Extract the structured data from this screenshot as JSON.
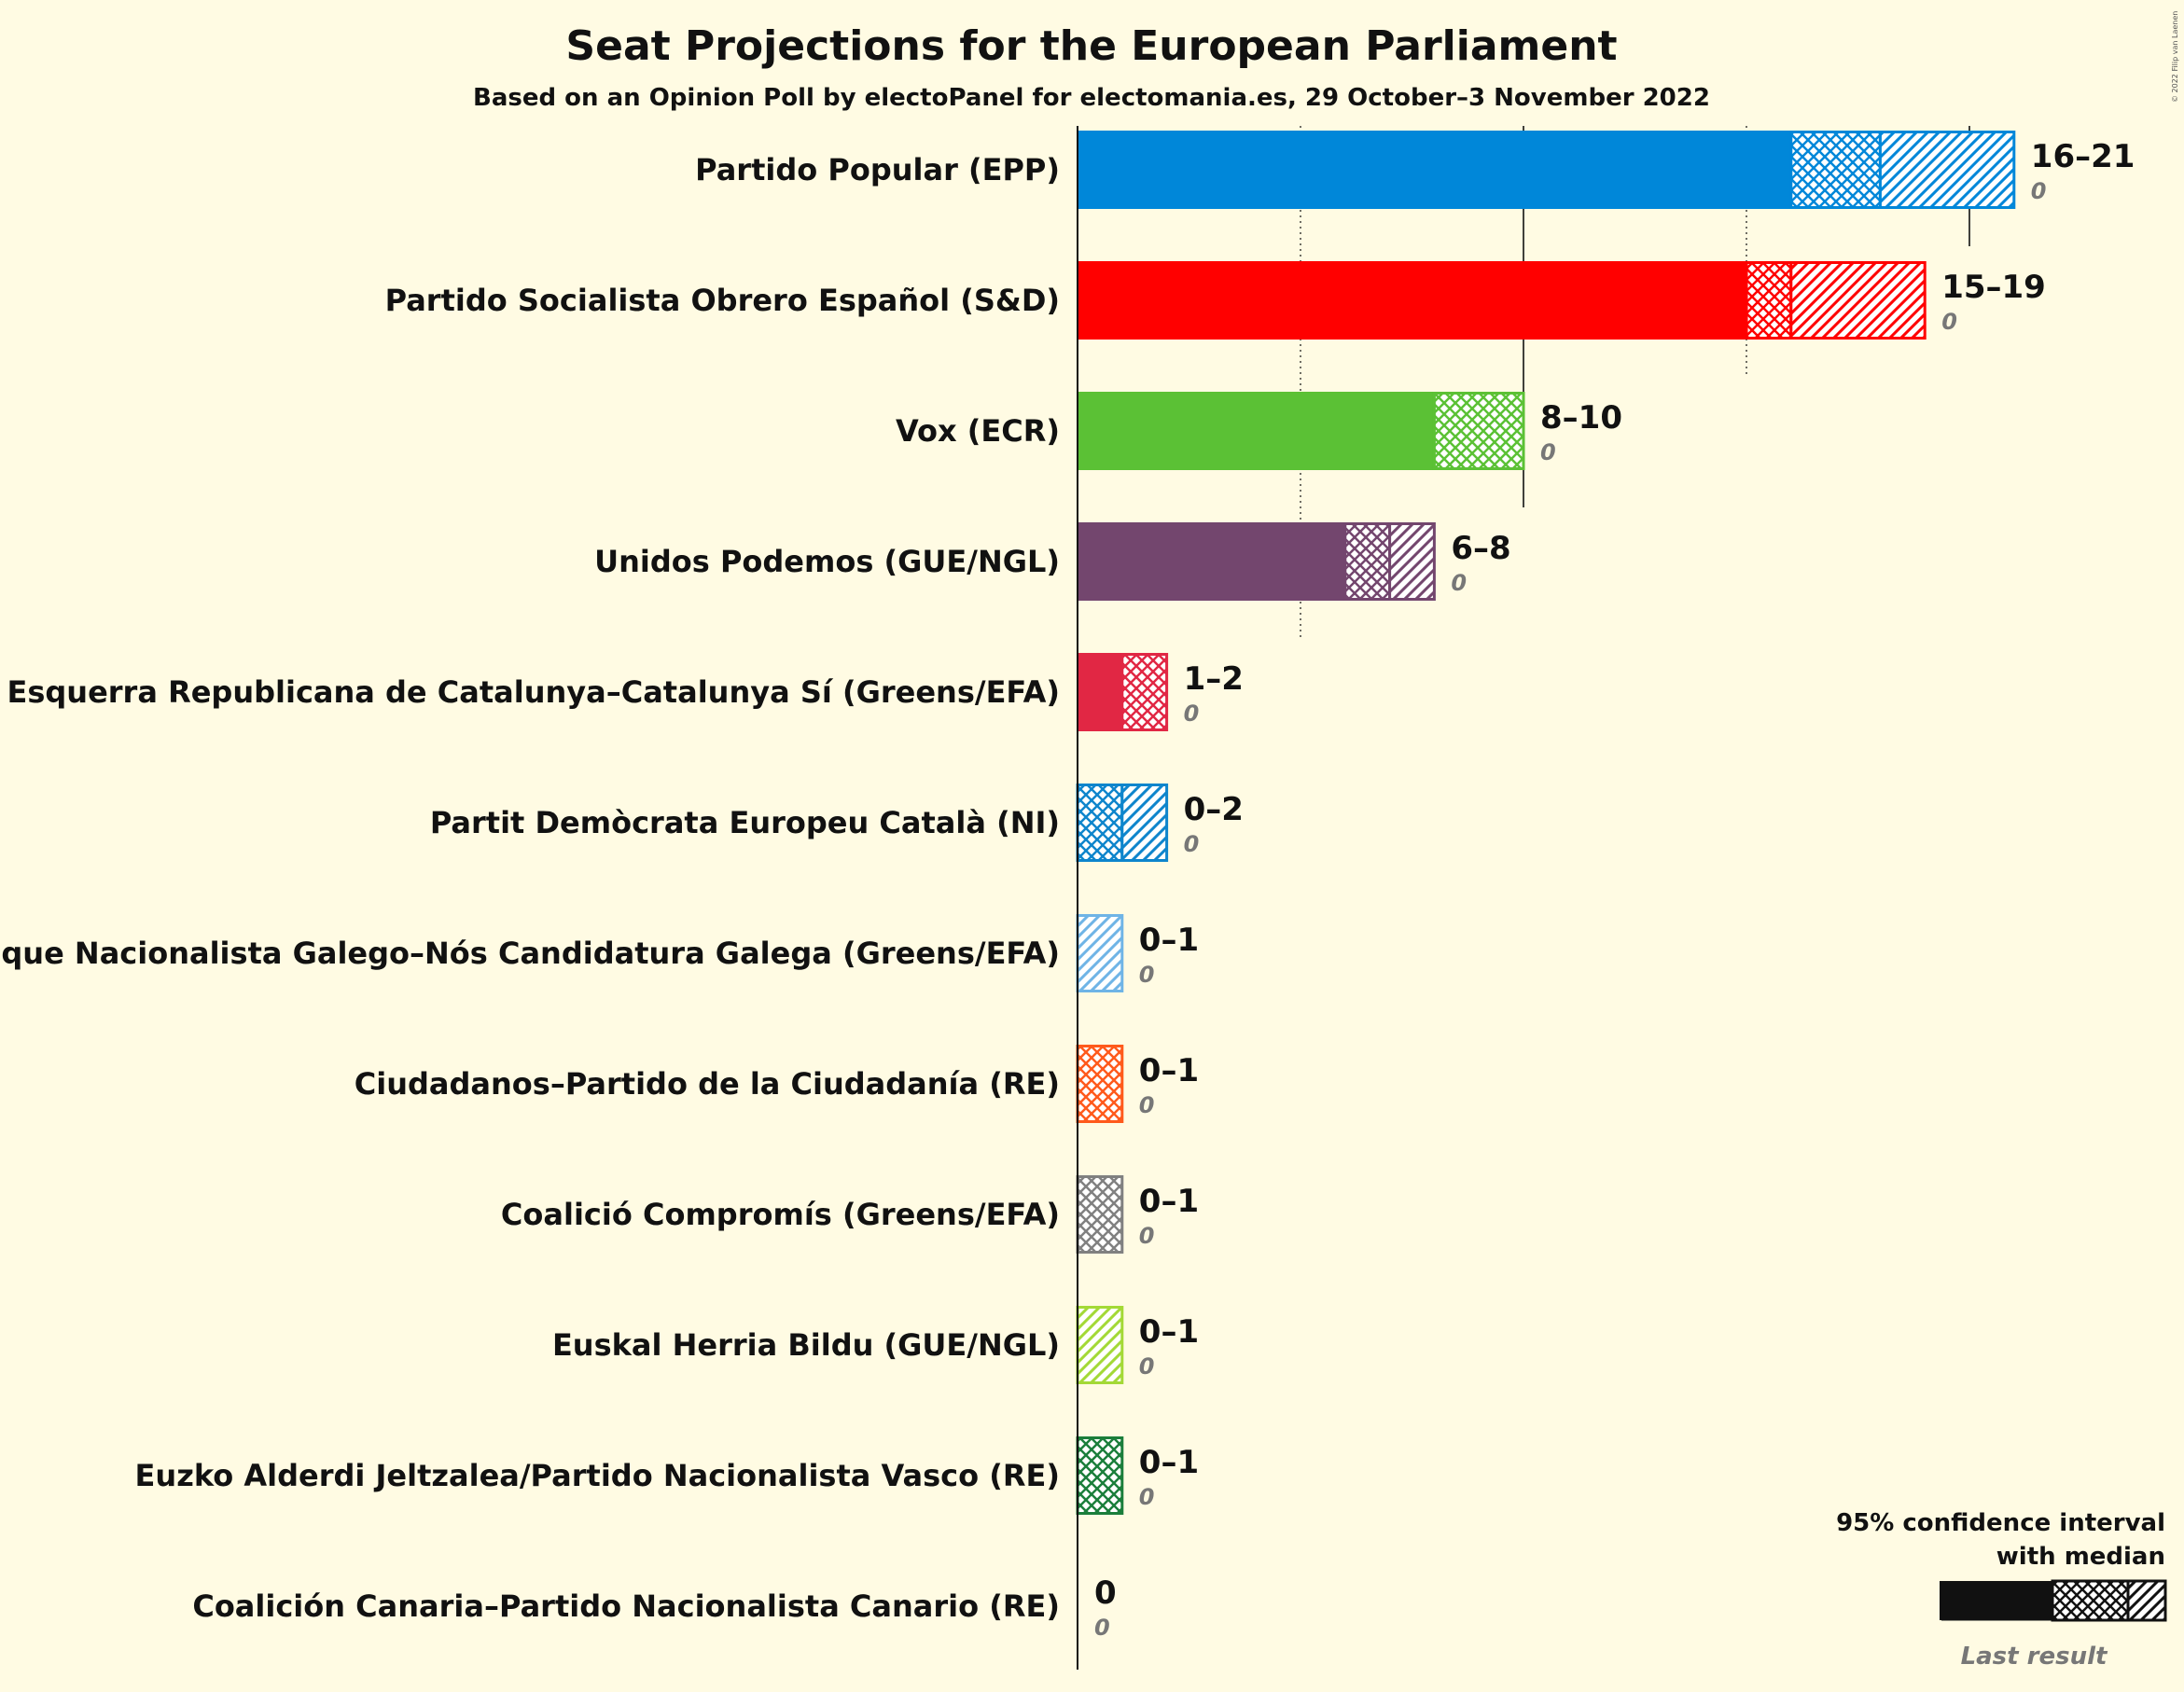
{
  "chart_data": {
    "type": "bar",
    "orientation": "horizontal",
    "title": "Seat Projections for the European Parliament",
    "subtitle": "Based on an Opinion Poll by electoPanel for electomania.es, 29 October–3 November 2022",
    "copyright": "© 2022 Filip van Laenen",
    "legend": {
      "line1": "95% confidence interval",
      "line2": "with median",
      "last_result": "Last result",
      "placement": "bottom-right"
    },
    "axis_max": 21,
    "gridlines": [
      5,
      10,
      15,
      20
    ],
    "series": [
      {
        "name": "Partido Popular (EPP)",
        "color": "#0087d9",
        "low": 16,
        "median": 18,
        "high": 21,
        "last": 0,
        "label": "16–21",
        "last_label": "0"
      },
      {
        "name": "Partido Socialista Obrero Español (S&D)",
        "color": "#ff0000",
        "low": 15,
        "median": 16,
        "high": 19,
        "last": 0,
        "label": "15–19",
        "last_label": "0"
      },
      {
        "name": "Vox (ECR)",
        "color": "#5bc135",
        "low": 8,
        "median": 10,
        "high": 10,
        "last": 0,
        "label": "8–10",
        "last_label": "0"
      },
      {
        "name": "Unidos Podemos (GUE/NGL)",
        "color": "#73466e",
        "low": 6,
        "median": 7,
        "high": 8,
        "last": 0,
        "label": "6–8",
        "last_label": "0"
      },
      {
        "name": "Esquerra Republicana de Catalunya–Catalunya Sí (Greens/EFA)",
        "color": "#e12744",
        "low": 1,
        "median": 2,
        "high": 2,
        "last": 0,
        "label": "1–2",
        "last_label": "0"
      },
      {
        "name": "Partit Demòcrata Europeu Català (NI)",
        "color": "#0e85cc",
        "low": 0,
        "median": 1,
        "high": 2,
        "last": 0,
        "label": "0–2",
        "last_label": "0"
      },
      {
        "name": "Bloque Nacionalista Galego–Nós Candidatura Galega (Greens/EFA)",
        "color": "#6fb4e6",
        "low": 0,
        "median": 0,
        "high": 1,
        "last": 0,
        "label": "0–1",
        "last_label": "0"
      },
      {
        "name": "Ciudadanos–Partido de la Ciudadanía (RE)",
        "color": "#ff5a1c",
        "low": 0,
        "median": 1,
        "high": 1,
        "last": 0,
        "label": "0–1",
        "last_label": "0"
      },
      {
        "name": "Coalició Compromís (Greens/EFA)",
        "color": "#808080",
        "low": 0,
        "median": 1,
        "high": 1,
        "last": 0,
        "label": "0–1",
        "last_label": "0"
      },
      {
        "name": "Euskal Herria Bildu (GUE/NGL)",
        "color": "#a3d936",
        "low": 0,
        "median": 0,
        "high": 1,
        "last": 0,
        "label": "0–1",
        "last_label": "0"
      },
      {
        "name": "Euzko Alderdi Jeltzalea/Partido Nacionalista Vasco (RE)",
        "color": "#1b7e3b",
        "low": 0,
        "median": 1,
        "high": 1,
        "last": 0,
        "label": "0–1",
        "last_label": "0"
      },
      {
        "name": "Coalición Canaria–Partido Nacionalista Canario (RE)",
        "color": "#ffcd00",
        "low": 0,
        "median": 0,
        "high": 0,
        "last": 0,
        "label": "0",
        "last_label": "0"
      }
    ]
  }
}
